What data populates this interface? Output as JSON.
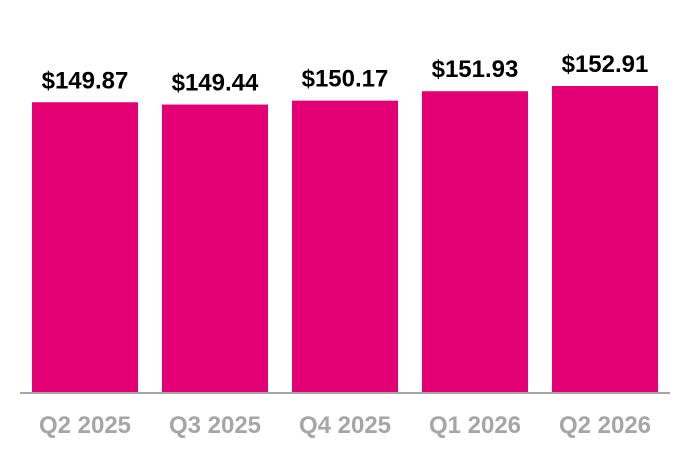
{
  "chart_data": {
    "type": "bar",
    "categories": [
      "Q2 2025",
      "Q3 2025",
      "Q4 2025",
      "Q1 2026",
      "Q2 2026"
    ],
    "values": [
      149.87,
      149.44,
      150.17,
      151.93,
      152.91
    ],
    "data_labels": [
      "$149.87",
      "$149.44",
      "$150.17",
      "$151.93",
      "$152.91"
    ],
    "title": "",
    "xlabel": "",
    "ylabel": "",
    "ylim": [
      95.5,
      155.9
    ],
    "grid": false,
    "legend": "none",
    "colors": {
      "bar": "#e20074",
      "axis": "#a6a6a6",
      "tick_text": "#a6a6a6",
      "value_text": "#000000"
    }
  }
}
